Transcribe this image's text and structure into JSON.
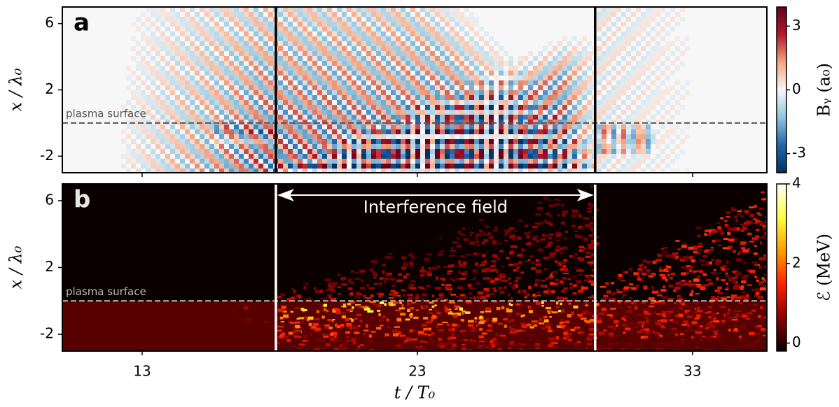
{
  "chart_data": [
    {
      "type": "heatmap",
      "panel_label": "a",
      "ylabel": "x / λ₀",
      "xlim": [
        10.1,
        35.7
      ],
      "xticks": [
        13,
        23,
        33
      ],
      "ylim": [
        -3,
        7
      ],
      "yticks": [
        6,
        2,
        -2
      ],
      "vlines": [
        17.86,
        29.46
      ],
      "vline_color": "#000000",
      "hline": 0,
      "hline_color": "#555555",
      "hline_label": "plasma surface",
      "colorbar": {
        "label": "Bᵧ (a₀)",
        "lim": [
          -3.9,
          3.9
        ],
        "ticks": [
          3,
          0,
          -3
        ],
        "colors": [
          "#053061",
          "#2166ac",
          "#92c5de",
          "#f7f7f7",
          "#f4a582",
          "#b2182b",
          "#67001f"
        ]
      }
    },
    {
      "type": "heatmap",
      "panel_label": "b",
      "ylabel": "x / λ₀",
      "xlabel": "t / T₀",
      "xlim": [
        10.1,
        35.7
      ],
      "xticks": [
        13,
        23,
        33
      ],
      "ylim": [
        -3,
        7
      ],
      "yticks": [
        6,
        2,
        -2
      ],
      "vlines": [
        17.86,
        29.46
      ],
      "vline_color": "#ffffff",
      "hline": 0,
      "hline_color": "#bbbbbb",
      "hline_label": "plasma surface",
      "annotation": "Interference field",
      "colorbar": {
        "label": "ℰ (MeV)",
        "lim": [
          -0.2,
          4
        ],
        "ticks": [
          0,
          2,
          4
        ],
        "colors": [
          "#0a0000",
          "#8b0000",
          "#ff2000",
          "#ff9d00",
          "#ffff40",
          "#ffffff"
        ]
      }
    }
  ]
}
